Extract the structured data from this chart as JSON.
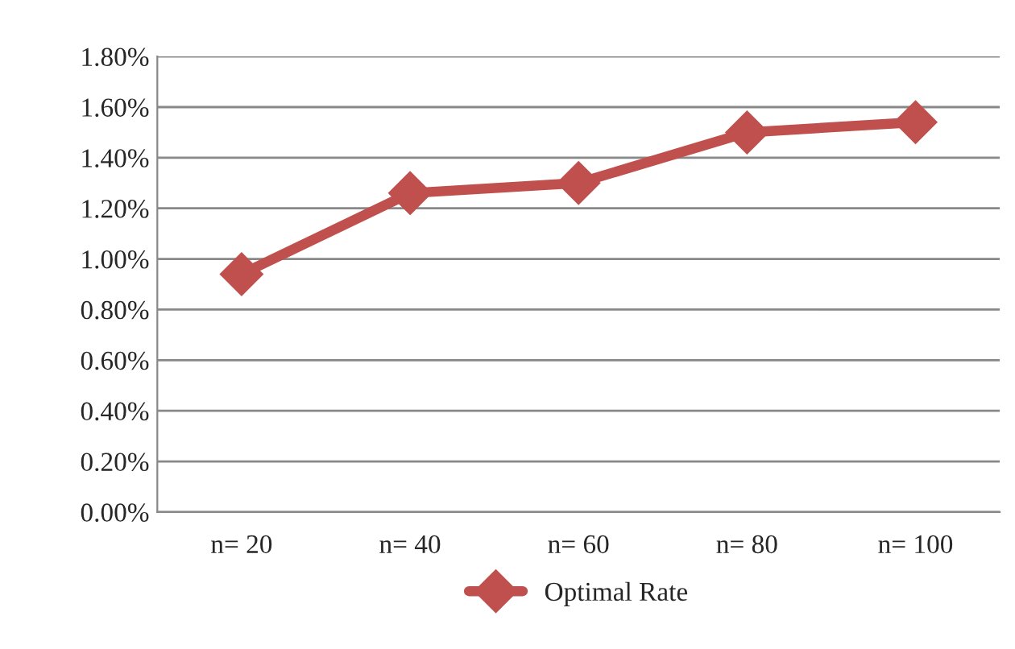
{
  "chart_data": {
    "type": "line",
    "categories": [
      "n= 20",
      "n= 40",
      "n= 60",
      "n= 80",
      "n= 100"
    ],
    "series": [
      {
        "name": "Optimal Rate",
        "color": "#c0504d",
        "values": [
          0.94,
          1.26,
          1.3,
          1.5,
          1.54
        ]
      }
    ],
    "ylim": [
      0,
      1.8
    ],
    "yticks": [
      {
        "value": 0,
        "label": "0.00%"
      },
      {
        "value": 0.2,
        "label": "0.20%"
      },
      {
        "value": 0.4,
        "label": "0.40%"
      },
      {
        "value": 0.6,
        "label": "0.60%"
      },
      {
        "value": 0.8,
        "label": "0.80%"
      },
      {
        "value": 1.0,
        "label": "1.00%"
      },
      {
        "value": 1.2,
        "label": "1.20%"
      },
      {
        "value": 1.4,
        "label": "1.40%"
      },
      {
        "value": 1.6,
        "label": "1.60%"
      },
      {
        "value": 1.8,
        "label": "1.80%"
      }
    ],
    "grid": "y",
    "legend": "bottom",
    "marker": "diamond",
    "line_style": "solid"
  }
}
